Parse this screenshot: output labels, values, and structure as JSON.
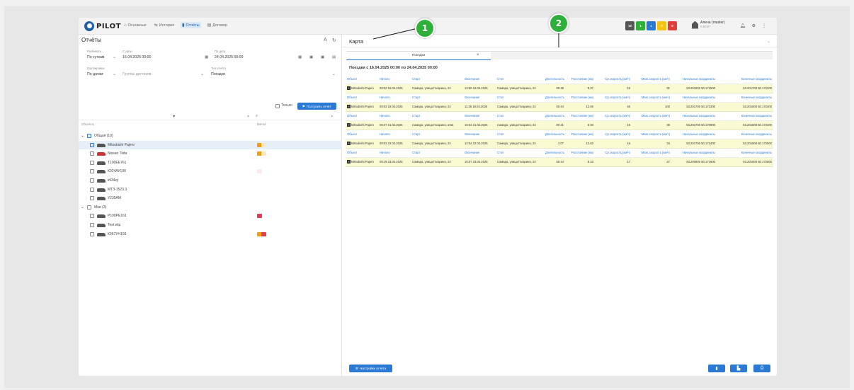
{
  "topbar": {
    "logo": "PILOT",
    "nav": [
      {
        "label": "Основные",
        "icon": "home-icon",
        "active": false
      },
      {
        "label": "История",
        "icon": "route-icon",
        "active": false
      },
      {
        "label": "Отчёты",
        "icon": "report-icon",
        "active": true
      },
      {
        "label": "Договор",
        "icon": "contract-icon",
        "active": false
      }
    ],
    "badges": [
      {
        "label": "10",
        "color": "#555555"
      },
      {
        "label": "1",
        "color": "#2fb03a"
      },
      {
        "label": "1",
        "color": "#2a79d4"
      },
      {
        "label": "0",
        "color": "#f5c211"
      },
      {
        "label": "0",
        "color": "#e03c3c"
      }
    ],
    "user_name": "Алена (master)",
    "user_balance": "0.00 ₽"
  },
  "left": {
    "title": "Отчёты",
    "detail_label": "Разбивать",
    "detail_value": "По суткам",
    "from_label": "С даты",
    "from_value": "16.04.2025 00:00",
    "to_label": "По дату",
    "to_value": "24.04.2025 00:00",
    "group_label": "Группировка",
    "group_value": "По датам",
    "sensor_groups": "Группы датчиков",
    "report_type_label": "Тип отчёта",
    "report_type_value": "Поездки",
    "only_label": "Только",
    "build_button": "Построить отчёт",
    "col_objects": "Объекты",
    "col_mark": "Метка",
    "tree": [
      {
        "label": "Общая (10)",
        "level": 0,
        "group": true,
        "checked": true,
        "marks": []
      },
      {
        "label": "Mitsubishi Pajero",
        "level": 1,
        "checked": true,
        "selected": true,
        "marks": [
          "#f39c12",
          "#fde7c7"
        ]
      },
      {
        "label": "Nissan Tiida",
        "level": 1,
        "checked": false,
        "marks": [
          "#f39c12",
          "#fde7c7"
        ]
      },
      {
        "label": "Т100ЕЕ761",
        "level": 1,
        "checked": false,
        "marks": []
      },
      {
        "label": "К024АУ190",
        "level": 1,
        "checked": false,
        "marks": [
          "#fde8f4"
        ]
      },
      {
        "label": "к934ку",
        "level": 1,
        "checked": false,
        "marks": []
      },
      {
        "label": "МТЗ-1523.3",
        "level": 1,
        "checked": false,
        "marks": []
      },
      {
        "label": "У235АМ",
        "level": 1,
        "checked": false,
        "marks": []
      },
      {
        "label": "Мои (3)",
        "level": 0,
        "group": true,
        "checked": false,
        "marks": []
      },
      {
        "label": "Р100РЕ161",
        "level": 1,
        "checked": false,
        "marks": [
          "#e03c5a"
        ]
      },
      {
        "label": "Test wtp",
        "level": 1,
        "checked": false,
        "marks": []
      },
      {
        "label": "К967УН193",
        "level": 1,
        "checked": false,
        "marks": [
          "#f39c12",
          "#e03c5a"
        ]
      }
    ]
  },
  "right": {
    "title": "Карта",
    "tab": "Поездки",
    "period": "Поездки с 16.04.2025 00:00 по 24.04.2025 00:00",
    "headers": [
      "Объект",
      "Начало",
      "Старт",
      "Окончание",
      "Стоп",
      "Длительность",
      "Расстояние (км)",
      "Ср.скорость (км/ч)",
      "Макс.скорость (км/ч)",
      "Начальные координаты",
      "Конечные координаты"
    ],
    "rows": [
      [
        "Mitsubishi Pajero",
        "09:02 16.04.2025",
        "Самара, улица Гагарина, 24",
        "13:55 16.04.2025",
        "Самара, улица Гагарина, 24",
        "00:48",
        "8.07",
        "19",
        "31",
        "53.201500 50.172500",
        "53.201700 50.172200"
      ],
      [
        "Mitsubishi Pajero",
        "09:03 18.04.2025",
        "Самара, улица Гагарина, 24",
        "11:36 18.04.2025",
        "Самара, улица Гагарина, 24",
        "00:44",
        "12.69",
        "45",
        "100",
        "53.201700 50.172300",
        "53.201600 50.172400"
      ],
      [
        "Mitsubishi Pajero",
        "09:47 21.04.2025",
        "Самара, улица Гагарина, 22к1",
        "10:34 21.04.2025",
        "Самара, улица Гагарина, 24",
        "00:41",
        "6.93",
        "15",
        "36",
        "53.201700 50.170900",
        "53.201600 50.172400"
      ],
      [
        "Mitsubishi Pajero",
        "09:03 22.04.2025",
        "Самара, улица Гагарина, 24",
        "12:04 22.04.2025",
        "Самара, улица Гагарина, 24",
        "1:07",
        "12.63",
        "16",
        "34",
        "53.201700 50.172400",
        "53.201800 50.172500"
      ],
      [
        "Mitsubishi Pajero",
        "09:19 23.04.2025",
        "Самара, улица Гагарина, 24",
        "10:37 23.04.2025",
        "Самара, улица Гагарина, 24",
        "00:44",
        "8.23",
        "17",
        "27",
        "53.200900 50.171900",
        "53.201600 50.172600"
      ]
    ],
    "settings_button": "Настройки отчёта"
  },
  "callouts": [
    "1",
    "2"
  ]
}
